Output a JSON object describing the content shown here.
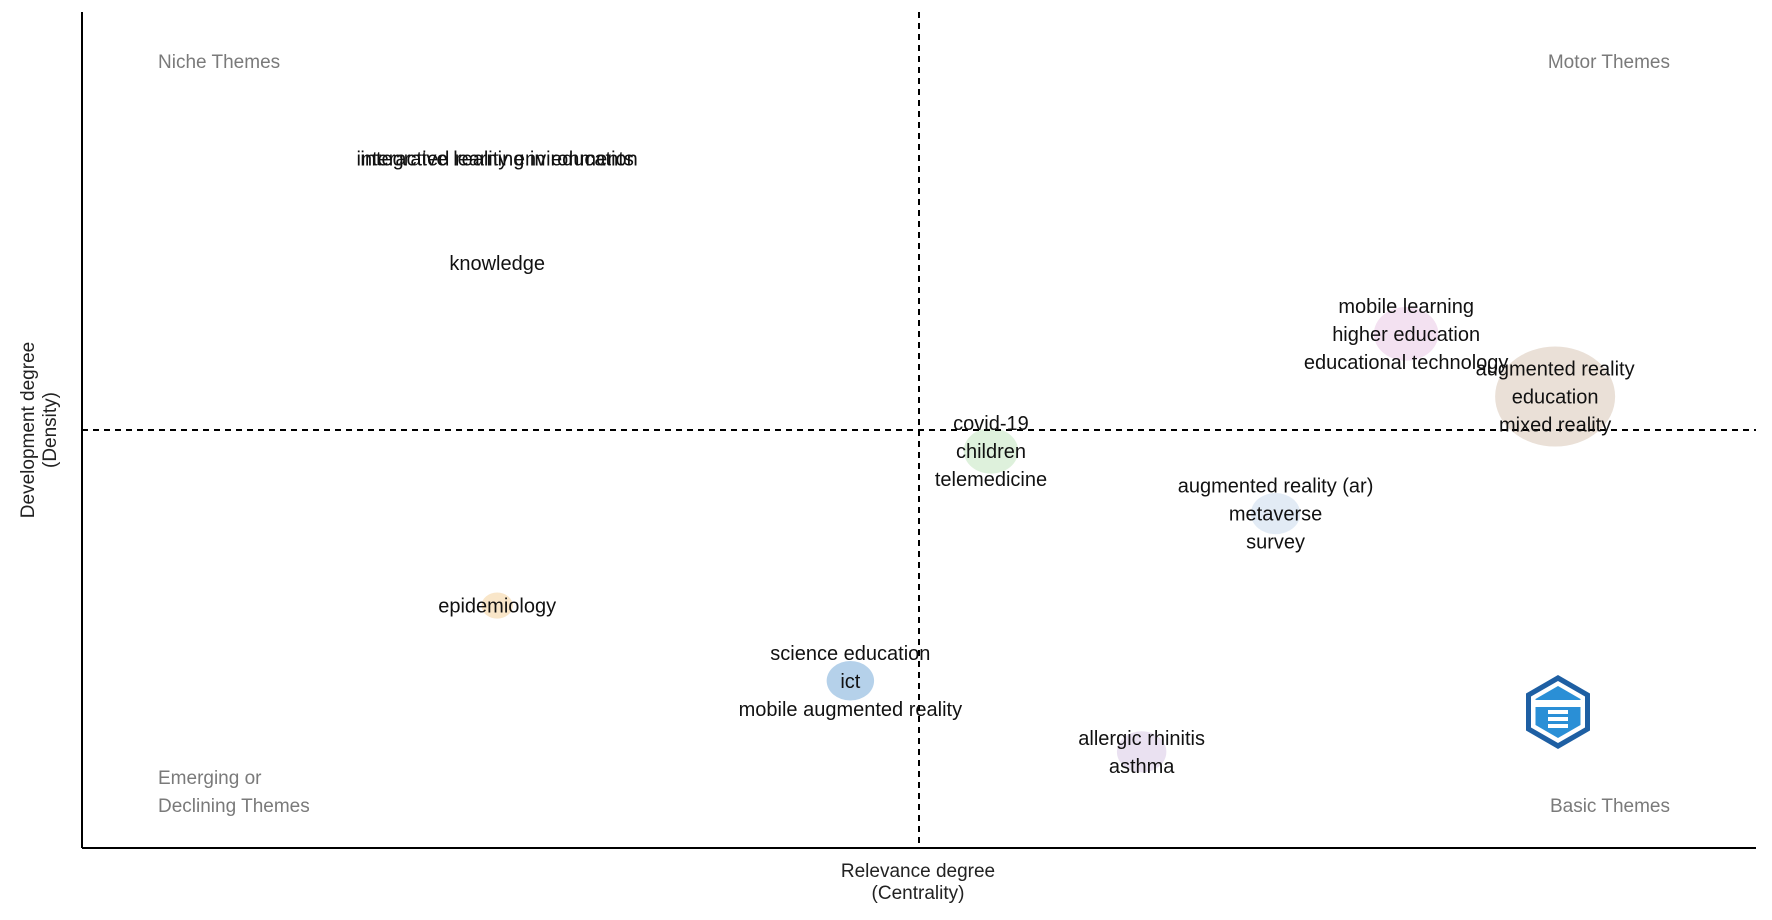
{
  "chart_data": {
    "type": "scatter",
    "xlabel": [
      "Relevance degree",
      "(Centrality)"
    ],
    "ylabel": [
      "Development degree",
      "(Density)"
    ],
    "quadrants": {
      "top_left": [
        "Niche Themes"
      ],
      "top_right": [
        "Motor Themes"
      ],
      "bottom_left": [
        "Emerging or",
        "Declining Themes"
      ],
      "bottom_right": [
        "Basic Themes"
      ]
    },
    "grid": false,
    "clusters": [
      {
        "x": 0.248,
        "y": 0.825,
        "size": 0.0,
        "color": "#e8e0ec",
        "labels": [
          "integrated reality environments"
        ]
      },
      {
        "x": 0.248,
        "y": 0.825,
        "size": 0.0,
        "color": "#e8e0ec",
        "labels": [
          "interactive learning in education"
        ]
      },
      {
        "x": 0.248,
        "y": 0.7,
        "size": 0.0,
        "color": "#e8e0ec",
        "labels": [
          "knowledge"
        ]
      },
      {
        "x": 0.791,
        "y": 0.615,
        "size": 0.45,
        "color": "#f1dcef",
        "labels": [
          "mobile learning",
          "higher education",
          "educational technology"
        ]
      },
      {
        "x": 0.88,
        "y": 0.54,
        "size": 1.0,
        "color": "#e6dad0",
        "labels": [
          "augmented reality",
          "education",
          "mixed reality"
        ]
      },
      {
        "x": 0.543,
        "y": 0.475,
        "size": 0.35,
        "color": "#d8efd6",
        "labels": [
          "covid-19",
          "children",
          "telemedicine"
        ]
      },
      {
        "x": 0.713,
        "y": 0.4,
        "size": 0.3,
        "color": "#dde8f3",
        "labels": [
          "augmented reality (ar)",
          "metaverse",
          "survey"
        ]
      },
      {
        "x": 0.248,
        "y": 0.29,
        "size": 0.12,
        "color": "#f8e2bf",
        "labels": [
          "epidemiology"
        ]
      },
      {
        "x": 0.459,
        "y": 0.2,
        "size": 0.28,
        "color": "#a8c9e6",
        "labels": [
          "science education",
          "ict",
          "mobile augmented reality"
        ]
      },
      {
        "x": 0.633,
        "y": 0.115,
        "size": 0.3,
        "color": "#e6dcef",
        "labels": [
          "allergic rhinitis",
          "asthma"
        ]
      }
    ],
    "xlim": [
      0,
      1
    ],
    "ylim": [
      0,
      1
    ],
    "reference_lines": {
      "x": 0.5,
      "y": 0.5
    }
  }
}
